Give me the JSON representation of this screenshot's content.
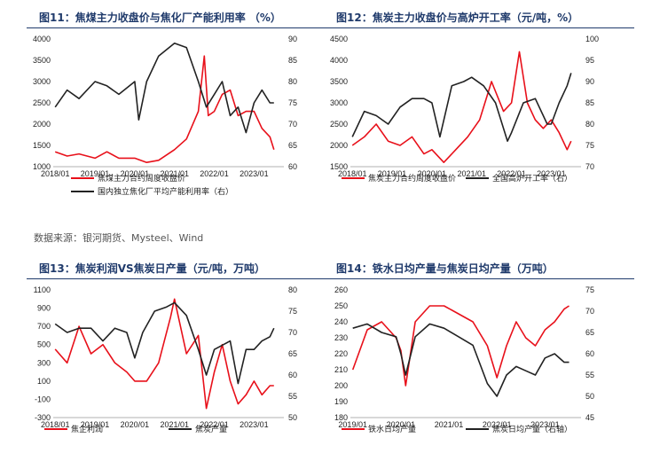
{
  "source": "数据来源：银河期货、Mysteel、Wind",
  "chart_data": [
    {
      "type": "line",
      "title": "图11：焦煤主力收盘价与焦化厂产能利用率 （%）",
      "x_labels": [
        "2018/01",
        "2019/01",
        "2020/01",
        "2021/01",
        "2022/01",
        "2023/01"
      ],
      "yleft": {
        "min": 1000,
        "max": 4000,
        "ticks": [
          1000,
          1500,
          2000,
          2500,
          3000,
          3500,
          4000
        ]
      },
      "yright": {
        "min": 60,
        "max": 90,
        "ticks": [
          60,
          65,
          70,
          75,
          80,
          85,
          90
        ]
      },
      "series": [
        {
          "name": "焦煤主力合约周度收盘价",
          "axis": "left",
          "color": "#e8101a",
          "x": [
            2018.0,
            2018.3,
            2018.6,
            2019.0,
            2019.3,
            2019.6,
            2020.0,
            2020.3,
            2020.6,
            2021.0,
            2021.3,
            2021.6,
            2021.75,
            2021.85,
            2022.0,
            2022.2,
            2022.4,
            2022.6,
            2022.8,
            2023.0,
            2023.2,
            2023.4,
            2023.5
          ],
          "y": [
            1350,
            1250,
            1300,
            1200,
            1350,
            1200,
            1200,
            1100,
            1150,
            1400,
            1650,
            2300,
            3600,
            2200,
            2300,
            2700,
            2800,
            2200,
            2300,
            2300,
            1900,
            1700,
            1400
          ]
        },
        {
          "name": "国内独立焦化厂平均产能利用率（右）",
          "axis": "right",
          "color": "#222222",
          "x": [
            2018.0,
            2018.3,
            2018.6,
            2019.0,
            2019.3,
            2019.6,
            2020.0,
            2020.1,
            2020.3,
            2020.6,
            2021.0,
            2021.3,
            2021.6,
            2021.8,
            2022.0,
            2022.2,
            2022.4,
            2022.6,
            2022.8,
            2023.0,
            2023.2,
            2023.4,
            2023.5
          ],
          "y": [
            74,
            78,
            76,
            80,
            79,
            77,
            80,
            71,
            80,
            86,
            89,
            88,
            80,
            74,
            77,
            80,
            72,
            74,
            68,
            75,
            78,
            75,
            75
          ]
        }
      ]
    },
    {
      "type": "line",
      "title": "图12：焦炭主力收盘价与高炉开工率（元/吨，%）",
      "x_labels": [
        "2018/01",
        "2019/01",
        "2020/01",
        "2021/01",
        "2022/01",
        "2023/01"
      ],
      "yleft": {
        "min": 1500,
        "max": 4500,
        "ticks": [
          1500,
          2000,
          2500,
          3000,
          3500,
          4000,
          4500
        ]
      },
      "yright": {
        "min": 70,
        "max": 100,
        "ticks": [
          70,
          75,
          80,
          85,
          90,
          95,
          100
        ]
      },
      "series": [
        {
          "name": "焦炭主力合约周度收盘价",
          "axis": "left",
          "color": "#e8101a",
          "x": [
            2018.0,
            2018.3,
            2018.6,
            2018.9,
            2019.2,
            2019.5,
            2019.8,
            2020.0,
            2020.3,
            2020.6,
            2020.9,
            2021.2,
            2021.5,
            2021.8,
            2022.0,
            2022.2,
            2022.4,
            2022.6,
            2022.8,
            2023.0,
            2023.2,
            2023.4,
            2023.5
          ],
          "y": [
            2000,
            2200,
            2500,
            2100,
            2000,
            2200,
            1800,
            1900,
            1600,
            1900,
            2200,
            2600,
            3500,
            2800,
            3000,
            4200,
            3000,
            2600,
            2400,
            2600,
            2300,
            1900,
            2100
          ]
        },
        {
          "name": "全国高炉开工率（右）",
          "axis": "right",
          "color": "#222222",
          "x": [
            2018.0,
            2018.3,
            2018.6,
            2018.9,
            2019.2,
            2019.5,
            2019.8,
            2020.0,
            2020.2,
            2020.5,
            2020.8,
            2021.0,
            2021.3,
            2021.6,
            2021.9,
            2022.0,
            2022.3,
            2022.6,
            2022.9,
            2023.0,
            2023.2,
            2023.4,
            2023.5
          ],
          "y": [
            77,
            83,
            82,
            80,
            84,
            86,
            86,
            85,
            77,
            89,
            90,
            91,
            89,
            85,
            76,
            78,
            85,
            86,
            80,
            80,
            85,
            89,
            92
          ]
        }
      ]
    },
    {
      "type": "line",
      "title": "图13：焦炭利润VS焦炭日产量（元/吨，万吨）",
      "x_labels": [
        "2018/01",
        "2019/01",
        "2020/01",
        "2021/01",
        "2022/01",
        "2023/01"
      ],
      "yleft": {
        "min": -300,
        "max": 1100,
        "ticks": [
          -300,
          -100,
          100,
          300,
          500,
          700,
          900,
          1100
        ]
      },
      "yright": {
        "min": 50,
        "max": 80,
        "ticks": [
          50,
          55,
          60,
          65,
          70,
          75,
          80
        ]
      },
      "series": [
        {
          "name": "焦企利润",
          "axis": "left",
          "color": "#e8101a",
          "x": [
            2018.0,
            2018.3,
            2018.6,
            2018.9,
            2019.2,
            2019.5,
            2019.8,
            2020.0,
            2020.3,
            2020.6,
            2020.9,
            2021.0,
            2021.3,
            2021.6,
            2021.8,
            2022.0,
            2022.2,
            2022.4,
            2022.6,
            2022.8,
            2023.0,
            2023.2,
            2023.4,
            2023.5
          ],
          "y": [
            450,
            300,
            700,
            400,
            500,
            300,
            200,
            100,
            100,
            300,
            800,
            1000,
            400,
            600,
            -200,
            200,
            500,
            100,
            -150,
            -50,
            100,
            -50,
            50,
            50
          ]
        },
        {
          "name": "焦炭产量",
          "axis": "right",
          "color": "#222222",
          "x": [
            2018.0,
            2018.3,
            2018.6,
            2018.9,
            2019.2,
            2019.5,
            2019.8,
            2020.0,
            2020.2,
            2020.5,
            2020.8,
            2021.0,
            2021.3,
            2021.6,
            2021.8,
            2022.0,
            2022.2,
            2022.4,
            2022.6,
            2022.8,
            2023.0,
            2023.2,
            2023.4,
            2023.5
          ],
          "y": [
            72,
            70,
            71,
            71,
            68,
            71,
            70,
            64,
            70,
            75,
            76,
            77,
            74,
            66,
            60,
            66,
            67,
            68,
            58,
            66,
            66,
            68,
            69,
            71
          ]
        }
      ]
    },
    {
      "type": "line",
      "title": "图14：铁水日均产量与焦炭日均产量（万吨）",
      "x_labels": [
        "2019/01",
        "2020/01",
        "2021/01",
        "2022/01",
        "2023/01"
      ],
      "yleft": {
        "min": 180,
        "max": 260,
        "ticks": [
          180,
          190,
          200,
          210,
          220,
          230,
          240,
          250,
          260
        ]
      },
      "yright": {
        "min": 45,
        "max": 75,
        "ticks": [
          45,
          50,
          55,
          60,
          65,
          70,
          75
        ]
      },
      "series": [
        {
          "name": "铁水日均产量",
          "axis": "left",
          "color": "#e8101a",
          "x": [
            2019.0,
            2019.3,
            2019.6,
            2019.9,
            2020.0,
            2020.1,
            2020.3,
            2020.6,
            2020.9,
            2021.2,
            2021.5,
            2021.8,
            2022.0,
            2022.2,
            2022.4,
            2022.6,
            2022.8,
            2023.0,
            2023.2,
            2023.4,
            2023.5
          ],
          "y": [
            210,
            235,
            240,
            230,
            222,
            200,
            240,
            250,
            250,
            245,
            240,
            225,
            205,
            225,
            240,
            230,
            225,
            235,
            240,
            248,
            250
          ]
        },
        {
          "name": "焦炭日均产量（右轴）",
          "axis": "right",
          "color": "#222222",
          "x": [
            2019.0,
            2019.3,
            2019.6,
            2019.9,
            2020.0,
            2020.1,
            2020.3,
            2020.6,
            2020.9,
            2021.2,
            2021.5,
            2021.8,
            2022.0,
            2022.2,
            2022.4,
            2022.6,
            2022.8,
            2023.0,
            2023.2,
            2023.4,
            2023.5
          ],
          "y": [
            66,
            67,
            65,
            64,
            60,
            55,
            64,
            67,
            66,
            64,
            62,
            53,
            50,
            55,
            57,
            56,
            55,
            59,
            60,
            58,
            58
          ]
        }
      ]
    }
  ]
}
